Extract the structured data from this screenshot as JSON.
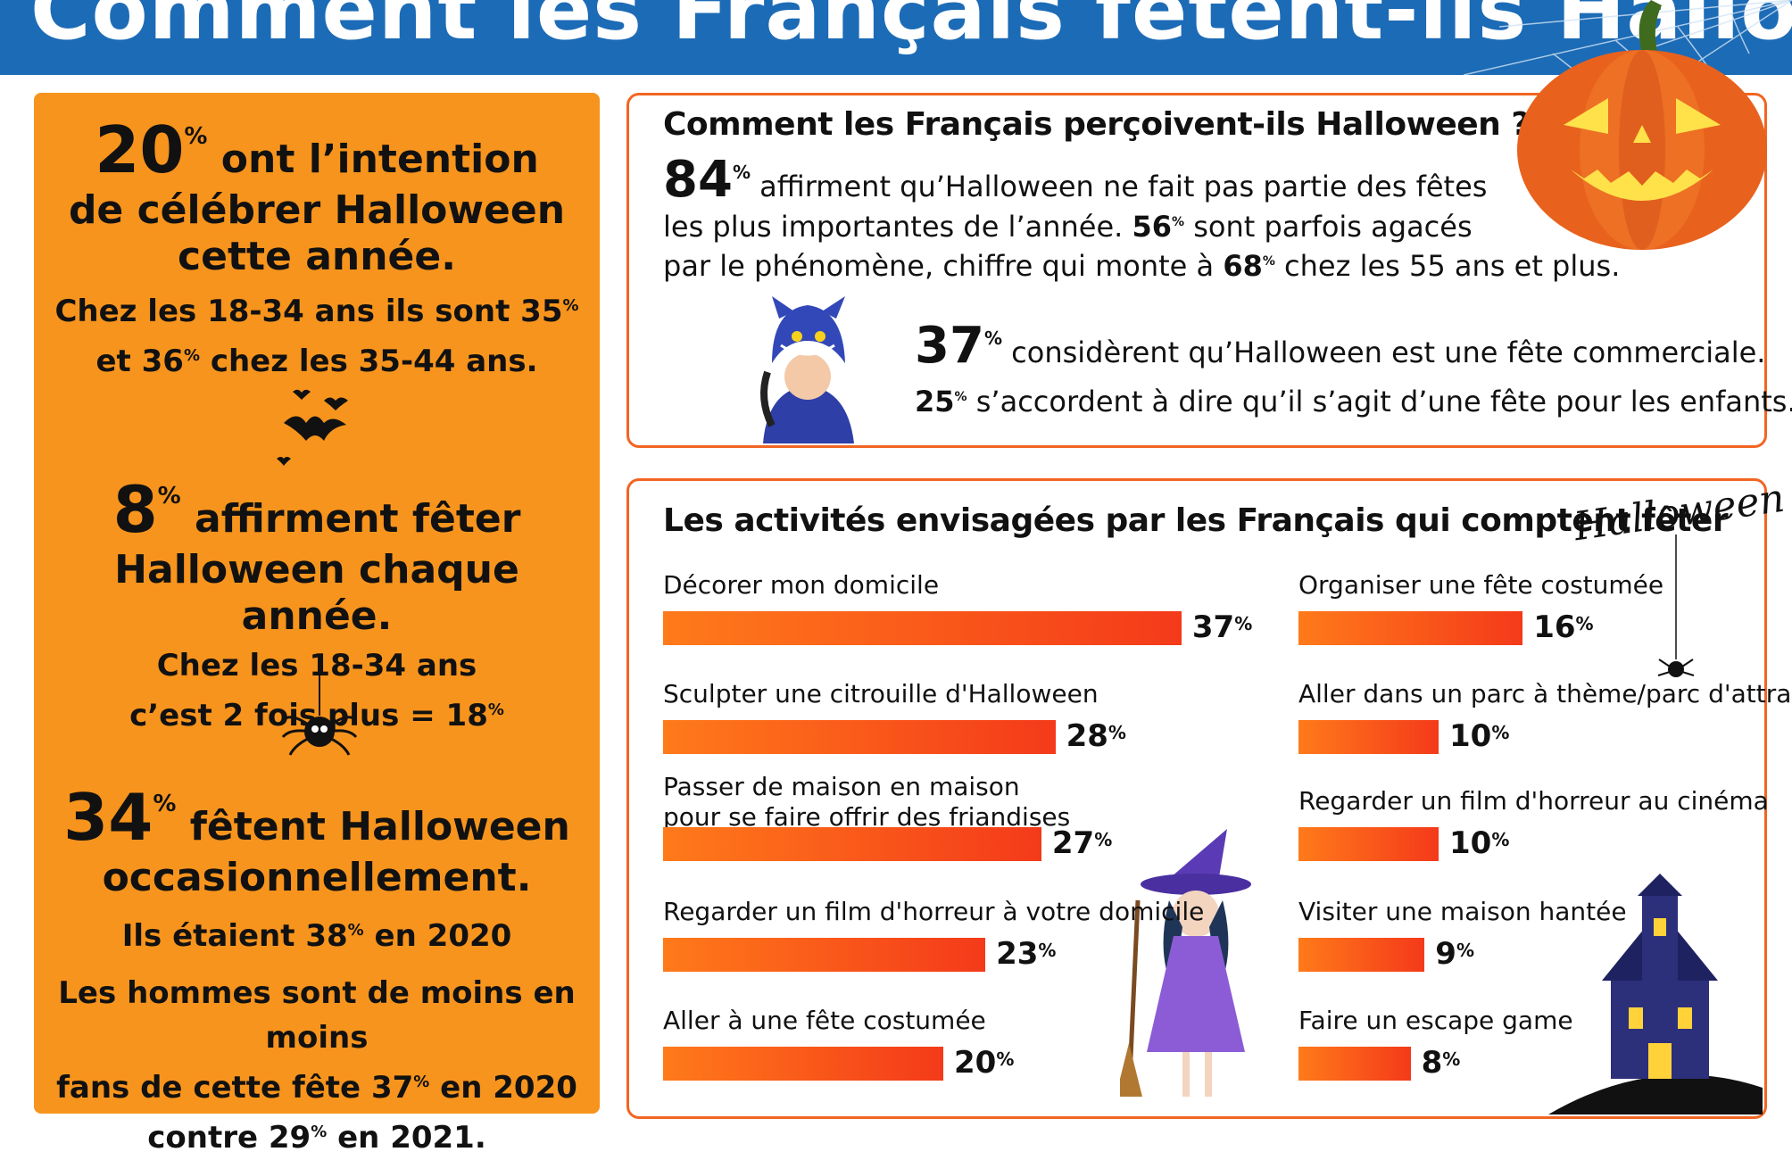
{
  "header": {
    "title": "Comment les Français fêtent-ils Halloween ?",
    "bg_color": "#1c6bb6"
  },
  "left": {
    "stat1_value": "20",
    "pct": "%",
    "stat1_line1": " ont l’intention",
    "stat1_line2": "de célébrer Halloween",
    "stat1_line3": "cette année.",
    "stat1_detail_a": "Chez les 18-34 ans ils sont ",
    "stat1_detail_a_val": "35",
    "stat1_detail_b_pre": "et ",
    "stat1_detail_b_val": "36",
    "stat1_detail_b_post": " chez les 35-44 ans.",
    "stat2_value": "8",
    "stat2_line1": " affirment fêter",
    "stat2_line2": "Halloween chaque année.",
    "stat2_detail_a": "Chez les 18-34 ans",
    "stat2_detail_b": "c’est 2 fois plus = ",
    "stat2_detail_b_val": "18",
    "stat3_value": "34",
    "stat3_line1": " fêtent Halloween",
    "stat3_line2": "occasionnellement.",
    "stat3_detail_a_pre": "Ils étaient ",
    "stat3_detail_a_val": "38",
    "stat3_detail_a_post": " en 2020",
    "stat3_detail_b": "Les hommes sont de moins en moins",
    "stat3_detail_c_pre": "fans de cette fête ",
    "stat3_detail_c_val": "37",
    "stat3_detail_c_post": " en 2020",
    "stat3_detail_d_pre": "contre ",
    "stat3_detail_d_val": "29",
    "stat3_detail_d_post": " en 2021.",
    "bg_color": "#f7941d"
  },
  "perception": {
    "heading": "Comment les Français perçoivent-ils Halloween ?",
    "v1": "84",
    "t1": " affirment qu’Halloween ne fait pas partie des fêtes",
    "t2a": "les plus importantes de l’année. ",
    "v2": "56",
    "t2b": " sont parfois agacés",
    "t3a": "par le phénomène, chiffre qui monte à ",
    "v3": "68",
    "t3b": " chez les 55 ans et plus.",
    "v4": "37",
    "t4": " considèrent qu’Halloween est une fête commerciale.",
    "v5": "25",
    "t5": " s’accordent à dire qu’il s’agit d’une fête pour les enfants."
  },
  "activities": {
    "heading": "Les activités envisagées par les Français qui comptent fêter",
    "logo_text": "Halloween"
  },
  "chart_data": {
    "type": "bar",
    "title": "Les activités envisagées par les Français qui comptent fêter",
    "unit": "%",
    "series": [
      {
        "categories": [
          "Décorer mon domicile",
          "Sculpter une citrouille d'Halloween",
          "Passer de maison en maison\npour se faire offrir des friandises",
          "Regarder un film d'horreur à votre domicile",
          "Aller à une fête costumée"
        ],
        "values": [
          37,
          28,
          27,
          23,
          20
        ]
      },
      {
        "categories": [
          "Organiser une fête costumée",
          "Aller dans un parc à thème/parc d'attraction",
          "Regarder un film d'horreur au cinéma",
          "Visiter une maison hantée",
          "Faire un escape game"
        ],
        "values": [
          16,
          10,
          10,
          9,
          8
        ]
      }
    ],
    "bar_color": "#f43a1a"
  }
}
